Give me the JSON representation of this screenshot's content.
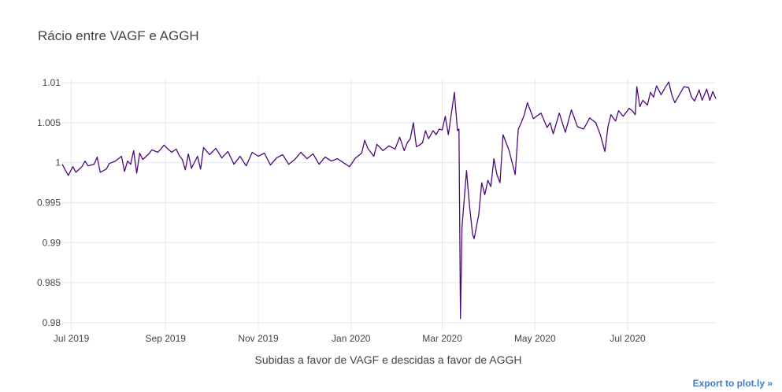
{
  "chart_data": {
    "type": "line",
    "title": "Rácio entre VAGF e AGGH",
    "xlabel": "Subidas a favor de VAGF e descidas a favor de AGGH",
    "ylabel": "",
    "grid": true,
    "xlim": [
      "2019-06-25",
      "2020-08-28"
    ],
    "ylim": [
      0.979,
      1.0105
    ],
    "x_ticks": [
      {
        "date": "2019-07-01",
        "label": "Jul 2019"
      },
      {
        "date": "2019-09-01",
        "label": "Sep 2019"
      },
      {
        "date": "2019-11-01",
        "label": "Nov 2019"
      },
      {
        "date": "2020-01-01",
        "label": "Jan 2020"
      },
      {
        "date": "2020-03-01",
        "label": "Mar 2020"
      },
      {
        "date": "2020-05-01",
        "label": "May 2020"
      },
      {
        "date": "2020-07-01",
        "label": "Jul 2020"
      }
    ],
    "y_ticks": [
      {
        "value": 0.98,
        "label": "0.98"
      },
      {
        "value": 0.985,
        "label": "0.985"
      },
      {
        "value": 0.99,
        "label": "0.99"
      },
      {
        "value": 0.995,
        "label": "0.995"
      },
      {
        "value": 1.0,
        "label": "1"
      },
      {
        "value": 1.005,
        "label": "1.005"
      },
      {
        "value": 1.01,
        "label": "1.01"
      }
    ],
    "series": [
      {
        "color": "#4b0a7a",
        "points": [
          [
            "2019-06-25",
            0.9998
          ],
          [
            "2019-06-29",
            0.9984
          ],
          [
            "2019-07-02",
            0.9995
          ],
          [
            "2019-07-04",
            0.9988
          ],
          [
            "2019-07-08",
            0.9995
          ],
          [
            "2019-07-10",
            1.0002
          ],
          [
            "2019-07-12",
            0.9996
          ],
          [
            "2019-07-16",
            0.9998
          ],
          [
            "2019-07-18",
            1.0007
          ],
          [
            "2019-07-20",
            0.9988
          ],
          [
            "2019-07-24",
            0.9992
          ],
          [
            "2019-07-26",
            0.9999
          ],
          [
            "2019-07-30",
            1.0002
          ],
          [
            "2019-08-03",
            1.0008
          ],
          [
            "2019-08-05",
            0.9989
          ],
          [
            "2019-08-07",
            1.0002
          ],
          [
            "2019-08-09",
            0.9998
          ],
          [
            "2019-08-11",
            1.0015
          ],
          [
            "2019-08-13",
            0.9987
          ],
          [
            "2019-08-15",
            1.0012
          ],
          [
            "2019-08-17",
            1.0004
          ],
          [
            "2019-08-21",
            1.0011
          ],
          [
            "2019-08-23",
            1.0016
          ],
          [
            "2019-08-27",
            1.0013
          ],
          [
            "2019-08-31",
            1.0022
          ],
          [
            "2019-09-02",
            1.0018
          ],
          [
            "2019-09-05",
            1.0013
          ],
          [
            "2019-09-08",
            1.0017
          ],
          [
            "2019-09-10",
            1.0009
          ],
          [
            "2019-09-12",
            1.0004
          ],
          [
            "2019-09-14",
            0.9991
          ],
          [
            "2019-09-16",
            1.0011
          ],
          [
            "2019-09-18",
            0.9993
          ],
          [
            "2019-09-22",
            1.0008
          ],
          [
            "2019-09-24",
            0.9992
          ],
          [
            "2019-09-26",
            1.0019
          ],
          [
            "2019-09-30",
            1.001
          ],
          [
            "2019-10-04",
            1.0018
          ],
          [
            "2019-10-08",
            1.0006
          ],
          [
            "2019-10-12",
            1.0014
          ],
          [
            "2019-10-16",
            0.9998
          ],
          [
            "2019-10-20",
            1.0008
          ],
          [
            "2019-10-24",
            0.9996
          ],
          [
            "2019-10-28",
            1.0013
          ],
          [
            "2019-11-01",
            1.0008
          ],
          [
            "2019-11-05",
            1.0012
          ],
          [
            "2019-11-09",
            0.9997
          ],
          [
            "2019-11-13",
            1.0006
          ],
          [
            "2019-11-17",
            1.001
          ],
          [
            "2019-11-21",
            0.9998
          ],
          [
            "2019-11-25",
            1.0004
          ],
          [
            "2019-11-29",
            1.0013
          ],
          [
            "2019-12-03",
            1.0005
          ],
          [
            "2019-12-07",
            1.0011
          ],
          [
            "2019-12-11",
            0.9998
          ],
          [
            "2019-12-15",
            1.0007
          ],
          [
            "2019-12-19",
            1.0002
          ],
          [
            "2019-12-23",
            1.0005
          ],
          [
            "2019-12-27",
            1.0
          ],
          [
            "2019-12-31",
            0.9995
          ],
          [
            "2020-01-04",
            1.0006
          ],
          [
            "2020-01-08",
            1.0012
          ],
          [
            "2020-01-10",
            1.0028
          ],
          [
            "2020-01-12",
            1.0018
          ],
          [
            "2020-01-16",
            1.0008
          ],
          [
            "2020-01-18",
            1.0023
          ],
          [
            "2020-01-22",
            1.0015
          ],
          [
            "2020-01-26",
            1.0021
          ],
          [
            "2020-01-30",
            1.0017
          ],
          [
            "2020-02-02",
            1.0032
          ],
          [
            "2020-02-05",
            1.0015
          ],
          [
            "2020-02-07",
            1.0025
          ],
          [
            "2020-02-09",
            1.003
          ],
          [
            "2020-02-11",
            1.005
          ],
          [
            "2020-02-13",
            1.002
          ],
          [
            "2020-02-15",
            1.0022
          ],
          [
            "2020-02-17",
            1.0025
          ],
          [
            "2020-02-19",
            1.004
          ],
          [
            "2020-02-21",
            1.003
          ],
          [
            "2020-02-24",
            1.004
          ],
          [
            "2020-02-26",
            1.0035
          ],
          [
            "2020-02-28",
            1.0042
          ],
          [
            "2020-03-01",
            1.0041
          ],
          [
            "2020-03-03",
            1.0058
          ],
          [
            "2020-03-05",
            1.0035
          ],
          [
            "2020-03-09",
            1.0088
          ],
          [
            "2020-03-11",
            1.004
          ],
          [
            "2020-03-12",
            1.0042
          ],
          [
            "2020-03-13",
            0.9805
          ],
          [
            "2020-03-14",
            0.992
          ],
          [
            "2020-03-17",
            0.999
          ],
          [
            "2020-03-19",
            0.9945
          ],
          [
            "2020-03-21",
            0.991
          ],
          [
            "2020-03-22",
            0.9905
          ],
          [
            "2020-03-25",
            0.9935
          ],
          [
            "2020-03-27",
            0.9975
          ],
          [
            "2020-03-29",
            0.996
          ],
          [
            "2020-03-31",
            0.9978
          ],
          [
            "2020-04-02",
            0.997
          ],
          [
            "2020-04-04",
            1.0005
          ],
          [
            "2020-04-06",
            0.9985
          ],
          [
            "2020-04-08",
            0.9975
          ],
          [
            "2020-04-10",
            1.0035
          ],
          [
            "2020-04-14",
            1.0015
          ],
          [
            "2020-04-18",
            0.9985
          ],
          [
            "2020-04-20",
            1.0042
          ],
          [
            "2020-04-22",
            1.005
          ],
          [
            "2020-04-24",
            1.006
          ],
          [
            "2020-04-26",
            1.0075
          ],
          [
            "2020-04-30",
            1.0055
          ],
          [
            "2020-05-02",
            1.0058
          ],
          [
            "2020-05-05",
            1.0062
          ],
          [
            "2020-05-09",
            1.0044
          ],
          [
            "2020-05-11",
            1.005
          ],
          [
            "2020-05-13",
            1.0036
          ],
          [
            "2020-05-17",
            1.0062
          ],
          [
            "2020-05-21",
            1.0038
          ],
          [
            "2020-05-25",
            1.0066
          ],
          [
            "2020-05-29",
            1.0045
          ],
          [
            "2020-06-02",
            1.0042
          ],
          [
            "2020-06-06",
            1.0056
          ],
          [
            "2020-06-10",
            1.005
          ],
          [
            "2020-06-13",
            1.0035
          ],
          [
            "2020-06-16",
            1.0014
          ],
          [
            "2020-06-18",
            1.0045
          ],
          [
            "2020-06-20",
            1.006
          ],
          [
            "2020-06-23",
            1.0052
          ],
          [
            "2020-06-25",
            1.0065
          ],
          [
            "2020-06-28",
            1.0058
          ],
          [
            "2020-07-02",
            1.0068
          ],
          [
            "2020-07-04",
            1.0065
          ],
          [
            "2020-07-06",
            1.006
          ],
          [
            "2020-07-07",
            1.0095
          ],
          [
            "2020-07-09",
            1.007
          ],
          [
            "2020-07-11",
            1.0078
          ],
          [
            "2020-07-14",
            1.0072
          ],
          [
            "2020-07-16",
            1.0088
          ],
          [
            "2020-07-18",
            1.0082
          ],
          [
            "2020-07-20",
            1.0096
          ],
          [
            "2020-07-23",
            1.0085
          ],
          [
            "2020-07-26",
            1.0095
          ],
          [
            "2020-07-28",
            1.0101
          ],
          [
            "2020-07-30",
            1.0085
          ],
          [
            "2020-08-01",
            1.0075
          ],
          [
            "2020-08-04",
            1.0085
          ],
          [
            "2020-08-07",
            1.0095
          ],
          [
            "2020-08-10",
            1.0094
          ],
          [
            "2020-08-12",
            1.0082
          ],
          [
            "2020-08-14",
            1.0077
          ],
          [
            "2020-08-17",
            1.0091
          ],
          [
            "2020-08-19",
            1.0078
          ],
          [
            "2020-08-22",
            1.0092
          ],
          [
            "2020-08-24",
            1.0078
          ],
          [
            "2020-08-26",
            1.0089
          ],
          [
            "2020-08-28",
            1.008
          ]
        ]
      }
    ]
  },
  "export_link": "Export to plot.ly »"
}
